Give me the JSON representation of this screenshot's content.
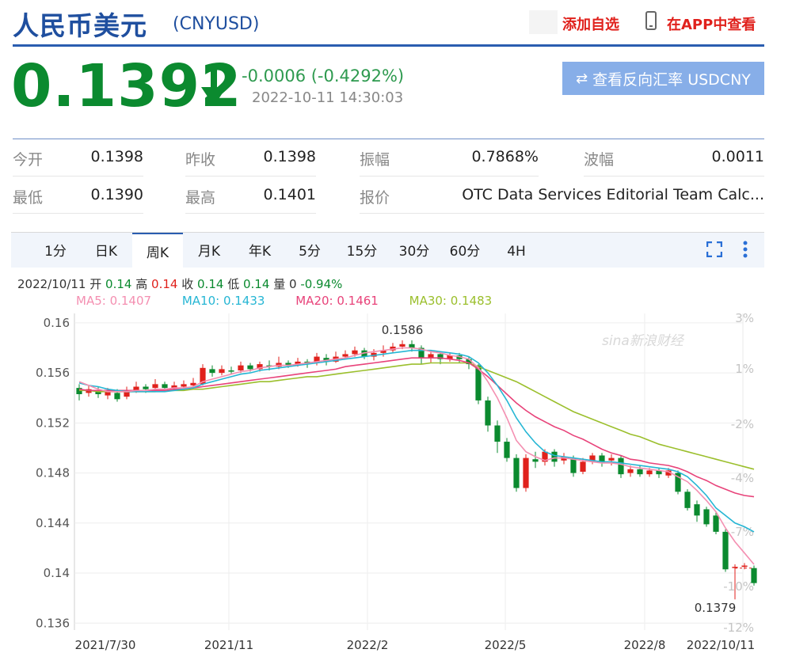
{
  "header": {
    "title": "人民币美元",
    "code": "(CNYUSD)",
    "add_fav": "添加自选",
    "app_view": "在APP中查看"
  },
  "quote": {
    "price": "0.1392",
    "direction": "down",
    "change": "-0.0006 (-0.4292%)",
    "timestamp": "2022-10-11 14:30:03",
    "reverse_button": "查看反向汇率 USDCNY"
  },
  "stats": {
    "open_label": "今开",
    "open": "0.1398",
    "prev_close_label": "昨收",
    "prev_close": "0.1398",
    "amplitude_label": "振幅",
    "amplitude": "0.7868%",
    "wave_label": "波幅",
    "wave": "0.0011",
    "low_label": "最低",
    "low": "0.1390",
    "high_label": "最高",
    "high": "0.1401",
    "quote_label": "报价",
    "quote_source": "OTC Data Services Editorial Team Calc..."
  },
  "tabs": [
    {
      "label": "1分"
    },
    {
      "label": "日K"
    },
    {
      "label": "周K"
    },
    {
      "label": "月K"
    },
    {
      "label": "年K"
    },
    {
      "label": "5分"
    },
    {
      "label": "15分"
    },
    {
      "label": "30分"
    },
    {
      "label": "60分"
    },
    {
      "label": "4H"
    }
  ],
  "active_tab": "周K",
  "ohlc": {
    "date": "2022/10/11",
    "open_label": "开",
    "open": "0.14",
    "high_label": "高",
    "high": "0.14",
    "close_label": "收",
    "close": "0.14",
    "low_label": "低",
    "low": "0.14",
    "vol_label": "量",
    "vol": "0",
    "pct": "-0.94%"
  },
  "ma": {
    "ma5": "MA5: 0.1407",
    "ma10": "MA10: 0.1433",
    "ma20": "MA20: 0.1461",
    "ma30": "MA30: 0.1483"
  },
  "watermark": "sina新浪财经",
  "colors": {
    "up": "#e0211c",
    "down": "#0b8a2f",
    "ma5": "#f48fb1",
    "ma10": "#26b6d4",
    "ma20": "#e8437a",
    "ma30": "#9bbf2c",
    "accent": "#2a5db0"
  },
  "chart_data": {
    "type": "candlestick",
    "y_ticks": [
      "0.16",
      "0.156",
      "0.152",
      "0.148",
      "0.144",
      "0.14",
      "0.136"
    ],
    "y_right_ticks": [
      "3%",
      "1%",
      "-2%",
      "-4%",
      "-7%",
      "-10%",
      "-12%"
    ],
    "x_labels": [
      "2021/7/30",
      "2021/11",
      "2022/2",
      "2022/5",
      "2022/8",
      "2022/10/11"
    ],
    "ylim": [
      0.1357,
      0.1605
    ],
    "max_label": "0.1586",
    "min_label": "0.1379",
    "candles": [
      [
        0.1548,
        0.1543,
        0.1551,
        0.1538
      ],
      [
        0.1544,
        0.1547,
        0.155,
        0.1541
      ],
      [
        0.1546,
        0.1543,
        0.1549,
        0.154
      ],
      [
        0.1542,
        0.1545,
        0.1548,
        0.1539
      ],
      [
        0.1544,
        0.1539,
        0.1547,
        0.1537
      ],
      [
        0.1541,
        0.1546,
        0.1549,
        0.1539
      ],
      [
        0.1546,
        0.1549,
        0.1553,
        0.1544
      ],
      [
        0.1549,
        0.1547,
        0.1551,
        0.1544
      ],
      [
        0.1548,
        0.1551,
        0.1555,
        0.1546
      ],
      [
        0.1551,
        0.1548,
        0.1553,
        0.1545
      ],
      [
        0.1548,
        0.155,
        0.1553,
        0.1546
      ],
      [
        0.1549,
        0.1551,
        0.1554,
        0.1547
      ],
      [
        0.155,
        0.1552,
        0.1556,
        0.1548
      ],
      [
        0.1551,
        0.1564,
        0.1567,
        0.155
      ],
      [
        0.1563,
        0.156,
        0.1566,
        0.1557
      ],
      [
        0.156,
        0.1563,
        0.1566,
        0.1558
      ],
      [
        0.1562,
        0.1561,
        0.1565,
        0.1559
      ],
      [
        0.1562,
        0.1566,
        0.1569,
        0.156
      ],
      [
        0.1566,
        0.1563,
        0.1568,
        0.1561
      ],
      [
        0.1563,
        0.1567,
        0.1569,
        0.1561
      ],
      [
        0.1566,
        0.1565,
        0.157,
        0.1562
      ],
      [
        0.1565,
        0.1568,
        0.1573,
        0.1563
      ],
      [
        0.1568,
        0.1566,
        0.157,
        0.1564
      ],
      [
        0.1566,
        0.1569,
        0.1572,
        0.1565
      ],
      [
        0.1569,
        0.1567,
        0.1571,
        0.1564
      ],
      [
        0.1568,
        0.1573,
        0.1576,
        0.1566
      ],
      [
        0.1572,
        0.1569,
        0.1575,
        0.1566
      ],
      [
        0.1569,
        0.1573,
        0.1577,
        0.1568
      ],
      [
        0.1573,
        0.1575,
        0.1578,
        0.1571
      ],
      [
        0.1575,
        0.1578,
        0.1581,
        0.1573
      ],
      [
        0.1578,
        0.1573,
        0.158,
        0.1571
      ],
      [
        0.1573,
        0.1576,
        0.1579,
        0.157
      ],
      [
        0.1576,
        0.1578,
        0.1582,
        0.1573
      ],
      [
        0.1578,
        0.1581,
        0.1584,
        0.1576
      ],
      [
        0.1581,
        0.1583,
        0.1586,
        0.1579
      ],
      [
        0.1583,
        0.158,
        0.1586,
        0.1577
      ],
      [
        0.158,
        0.1572,
        0.1582,
        0.1567
      ],
      [
        0.1572,
        0.1575,
        0.1578,
        0.1568
      ],
      [
        0.1575,
        0.1571,
        0.1577,
        0.1567
      ],
      [
        0.1571,
        0.1574,
        0.1576,
        0.1569
      ],
      [
        0.1574,
        0.1571,
        0.1576,
        0.1568
      ],
      [
        0.1571,
        0.1567,
        0.1573,
        0.1563
      ],
      [
        0.1566,
        0.1538,
        0.1567,
        0.1535
      ],
      [
        0.1538,
        0.1518,
        0.1541,
        0.1513
      ],
      [
        0.1518,
        0.1505,
        0.1522,
        0.1496
      ],
      [
        0.1505,
        0.1492,
        0.1508,
        0.1489
      ],
      [
        0.1492,
        0.1468,
        0.1495,
        0.1465
      ],
      [
        0.1468,
        0.1492,
        0.1495,
        0.1465
      ],
      [
        0.1491,
        0.1489,
        0.1497,
        0.1484
      ],
      [
        0.1489,
        0.1497,
        0.1499,
        0.1486
      ],
      [
        0.1497,
        0.1489,
        0.1499,
        0.1485
      ],
      [
        0.149,
        0.1493,
        0.1496,
        0.1487
      ],
      [
        0.1492,
        0.148,
        0.1494,
        0.1477
      ],
      [
        0.1481,
        0.1489,
        0.1492,
        0.1479
      ],
      [
        0.1489,
        0.1494,
        0.1496,
        0.1487
      ],
      [
        0.1494,
        0.1488,
        0.1496,
        0.1485
      ],
      [
        0.149,
        0.1492,
        0.1495,
        0.1486
      ],
      [
        0.1492,
        0.1479,
        0.1494,
        0.1476
      ],
      [
        0.148,
        0.1483,
        0.1486,
        0.1477
      ],
      [
        0.1483,
        0.1479,
        0.1486,
        0.1477
      ],
      [
        0.1479,
        0.1482,
        0.1484,
        0.1477
      ],
      [
        0.1482,
        0.1479,
        0.1484,
        0.1476
      ],
      [
        0.1478,
        0.1482,
        0.1484,
        0.1476
      ],
      [
        0.148,
        0.1465,
        0.1482,
        0.1463
      ],
      [
        0.1465,
        0.1452,
        0.1467,
        0.145
      ],
      [
        0.1455,
        0.1446,
        0.1458,
        0.1441
      ],
      [
        0.1451,
        0.1439,
        0.1453,
        0.1437
      ],
      [
        0.1446,
        0.1433,
        0.1449,
        0.1431
      ],
      [
        0.1433,
        0.1403,
        0.1435,
        0.1401
      ],
      [
        0.1405,
        0.1405,
        0.1407,
        0.1379
      ],
      [
        0.1405,
        0.1406,
        0.1408,
        0.1403
      ],
      [
        0.1404,
        0.1392,
        0.1406,
        0.139
      ]
    ],
    "ma5": [
      0.1553,
      0.155,
      0.1547,
      0.1545,
      0.1545,
      0.1545,
      0.1546,
      0.1546,
      0.1547,
      0.1547,
      0.1548,
      0.1548,
      0.1549,
      0.1553,
      0.1555,
      0.1557,
      0.1559,
      0.1561,
      0.1562,
      0.1564,
      0.1565,
      0.1566,
      0.1566,
      0.1567,
      0.1568,
      0.1569,
      0.157,
      0.1571,
      0.1572,
      0.1574,
      0.1576,
      0.1577,
      0.1578,
      0.1579,
      0.158,
      0.158,
      0.1579,
      0.1577,
      0.1576,
      0.1574,
      0.1573,
      0.1571,
      0.1564,
      0.1553,
      0.154,
      0.1524,
      0.1506,
      0.1497,
      0.1493,
      0.149,
      0.1492,
      0.1492,
      0.1491,
      0.149,
      0.1489,
      0.1488,
      0.1488,
      0.1487,
      0.1485,
      0.1484,
      0.1483,
      0.1482,
      0.1481,
      0.1477,
      0.1473,
      0.1466,
      0.1458,
      0.1449,
      0.1436,
      0.1425,
      0.1416,
      0.1407
    ],
    "ma10": [
      0.1552,
      0.155,
      0.1549,
      0.1547,
      0.1546,
      0.1545,
      0.1545,
      0.1545,
      0.1545,
      0.1545,
      0.1546,
      0.1547,
      0.1548,
      0.1551,
      0.1553,
      0.1555,
      0.1557,
      0.1559,
      0.156,
      0.1562,
      0.1563,
      0.1564,
      0.1565,
      0.1566,
      0.1567,
      0.1568,
      0.1569,
      0.157,
      0.1571,
      0.1572,
      0.1573,
      0.1574,
      0.1575,
      0.1576,
      0.1577,
      0.1578,
      0.1578,
      0.1578,
      0.1577,
      0.1576,
      0.1575,
      0.1573,
      0.1568,
      0.156,
      0.155,
      0.1538,
      0.1524,
      0.1513,
      0.1504,
      0.1497,
      0.1494,
      0.1493,
      0.1492,
      0.1491,
      0.149,
      0.1489,
      0.1489,
      0.1488,
      0.1487,
      0.1486,
      0.1485,
      0.1484,
      0.1483,
      0.1481,
      0.1477,
      0.147,
      0.1462,
      0.1452,
      0.1446,
      0.144,
      0.1437,
      0.1433
    ],
    "ma20": [
      0.1547,
      0.1546,
      0.1546,
      0.1546,
      0.1546,
      0.1546,
      0.1546,
      0.1546,
      0.1546,
      0.1546,
      0.1547,
      0.1547,
      0.1548,
      0.1549,
      0.155,
      0.1551,
      0.1552,
      0.1553,
      0.1554,
      0.1555,
      0.1556,
      0.1557,
      0.1558,
      0.1559,
      0.156,
      0.1561,
      0.1562,
      0.1563,
      0.1565,
      0.1566,
      0.1567,
      0.1568,
      0.1569,
      0.157,
      0.1571,
      0.1572,
      0.1572,
      0.1572,
      0.1572,
      0.1571,
      0.157,
      0.1568,
      0.1563,
      0.1557,
      0.155,
      0.1543,
      0.1536,
      0.153,
      0.1525,
      0.1521,
      0.1517,
      0.1514,
      0.151,
      0.1507,
      0.1503,
      0.1499,
      0.1496,
      0.1494,
      0.1491,
      0.149,
      0.1488,
      0.1487,
      0.1486,
      0.1484,
      0.1481,
      0.1477,
      0.1474,
      0.147,
      0.1467,
      0.1464,
      0.1462,
      0.1461
    ],
    "ma30": [
      0.1546,
      0.1546,
      0.1545,
      0.1545,
      0.1545,
      0.1545,
      0.1545,
      0.1545,
      0.1545,
      0.1546,
      0.1546,
      0.1546,
      0.1547,
      0.1547,
      0.1548,
      0.1549,
      0.155,
      0.1551,
      0.1552,
      0.1553,
      0.1553,
      0.1554,
      0.1555,
      0.1556,
      0.1557,
      0.1557,
      0.1558,
      0.1559,
      0.156,
      0.1561,
      0.1562,
      0.1563,
      0.1564,
      0.1565,
      0.1566,
      0.1567,
      0.1567,
      0.1568,
      0.1568,
      0.1568,
      0.1568,
      0.1568,
      0.1565,
      0.1562,
      0.1559,
      0.1556,
      0.1553,
      0.1549,
      0.1545,
      0.1541,
      0.1537,
      0.1533,
      0.1529,
      0.1526,
      0.1523,
      0.152,
      0.1517,
      0.1514,
      0.1511,
      0.1509,
      0.1506,
      0.1503,
      0.1501,
      0.1499,
      0.1497,
      0.1495,
      0.1493,
      0.1491,
      0.1489,
      0.1487,
      0.1485,
      0.1483
    ]
  }
}
